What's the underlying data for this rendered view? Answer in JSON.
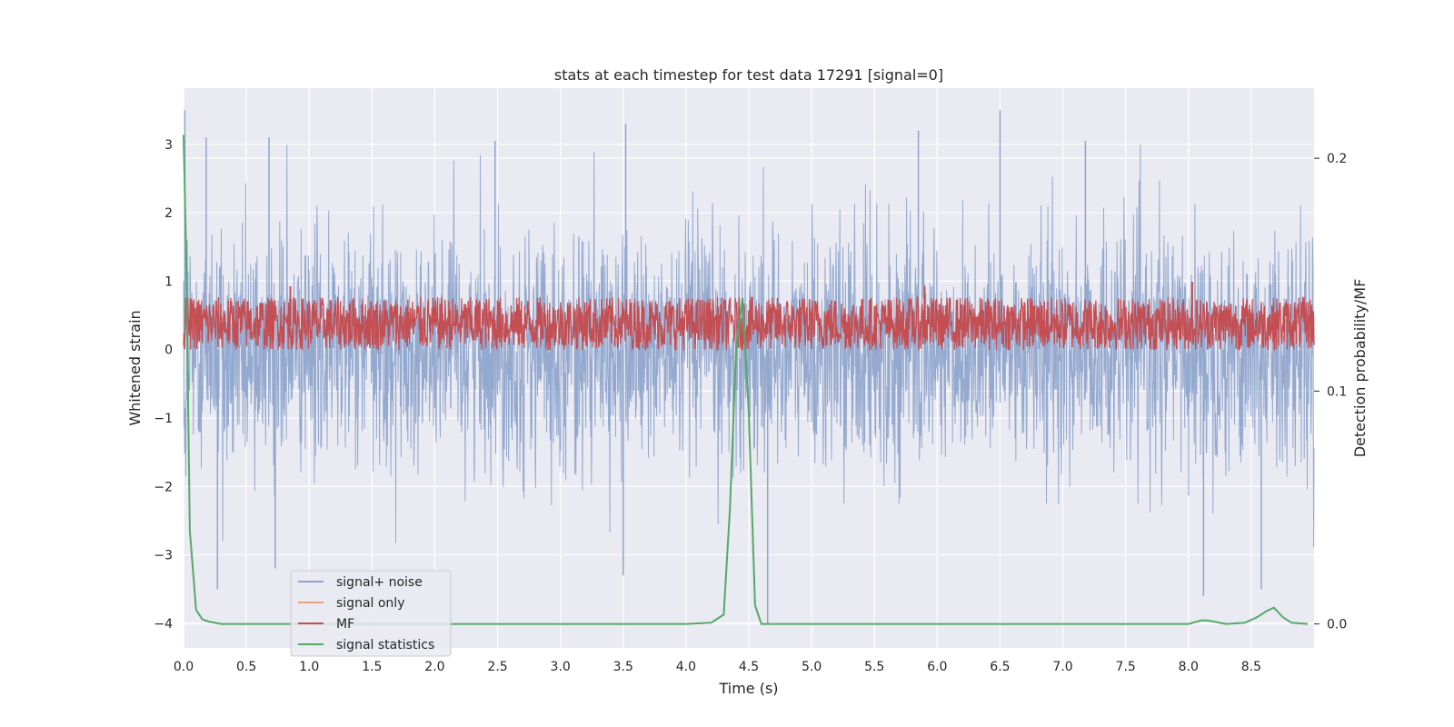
{
  "chart_data": {
    "type": "line",
    "title": "stats at each timestep for test data 17291 [signal=0]",
    "xlabel": "Time (s)",
    "ylabel_left": "Whitened strain",
    "ylabel_right": "Detection probability/MF",
    "xlim": [
      0.0,
      9.0
    ],
    "ylim_left": [
      -4.36,
      3.82
    ],
    "ylim_right": [
      -0.0103,
      0.2301
    ],
    "grid": true,
    "legend_position": "lower left",
    "x_ticks": [
      "0.0",
      "0.5",
      "1.0",
      "1.5",
      "2.0",
      "2.5",
      "3.0",
      "3.5",
      "4.0",
      "4.5",
      "5.0",
      "5.5",
      "6.0",
      "6.5",
      "7.0",
      "7.5",
      "8.0",
      "8.5"
    ],
    "y_ticks_left": [
      "−4",
      "−3",
      "−2",
      "−1",
      "0",
      "1",
      "2",
      "3"
    ],
    "y_ticks_right": [
      "0.0",
      "0.1",
      "0.2"
    ],
    "series": [
      {
        "name": "signal+ noise",
        "color": "#8fa5cc",
        "axis": "left",
        "description": "dense whitened noise, roughly between -3.5 and 3.5",
        "envelope_typical": [
          -2.0,
          2.0
        ],
        "peaks": [
          {
            "x": 0.01,
            "y": 3.5
          },
          {
            "x": 0.18,
            "y": 3.1
          },
          {
            "x": 0.68,
            "y": 3.1
          },
          {
            "x": 2.48,
            "y": 3.05
          },
          {
            "x": 3.52,
            "y": 3.3
          },
          {
            "x": 6.5,
            "y": 3.5
          },
          {
            "x": 5.85,
            "y": 3.2
          },
          {
            "x": 7.18,
            "y": 3.05
          },
          {
            "x": 0.27,
            "y": -3.5
          },
          {
            "x": 0.73,
            "y": -3.2
          },
          {
            "x": 3.5,
            "y": -3.3
          },
          {
            "x": 4.65,
            "y": -4.0
          },
          {
            "x": 8.12,
            "y": -3.6
          },
          {
            "x": 8.58,
            "y": -3.5
          }
        ]
      },
      {
        "name": "signal only",
        "color": "#e8a17e",
        "axis": "left",
        "values": []
      },
      {
        "name": "MF",
        "color": "#c44e52",
        "axis": "right",
        "description": "matched filter output, noisy band roughly 0.12-0.14 on right axis",
        "band": [
          0.1175,
          0.1405
        ],
        "peaks": [
          {
            "x": 0.85,
            "y": 0.145
          },
          {
            "x": 5.9,
            "y": 0.145
          },
          {
            "x": 8.03,
            "y": 0.147
          }
        ]
      },
      {
        "name": "signal statistics",
        "color": "#55a868",
        "axis": "right",
        "x": [
          0.0,
          0.02,
          0.05,
          0.1,
          0.15,
          0.2,
          0.3,
          0.4,
          0.6,
          1.0,
          2.0,
          3.0,
          4.0,
          4.2,
          4.3,
          4.35,
          4.4,
          4.45,
          4.5,
          4.55,
          4.6,
          4.8,
          5.0,
          5.5,
          6.0,
          7.0,
          8.0,
          8.1,
          8.15,
          8.2,
          8.3,
          8.45,
          8.55,
          8.62,
          8.68,
          8.75,
          8.82,
          8.95
        ],
        "y": [
          0.21,
          0.16,
          0.04,
          0.006,
          0.002,
          0.001,
          0.0,
          0.0,
          0.0,
          0.0,
          0.0,
          0.0,
          0.0,
          0.0005,
          0.004,
          0.05,
          0.12,
          0.14,
          0.09,
          0.008,
          0.0,
          0.0,
          0.0,
          0.0,
          0.0,
          0.0,
          0.0,
          0.0015,
          0.0015,
          0.001,
          0.0,
          0.0005,
          0.003,
          0.0055,
          0.007,
          0.003,
          0.0005,
          0.0
        ]
      }
    ]
  }
}
